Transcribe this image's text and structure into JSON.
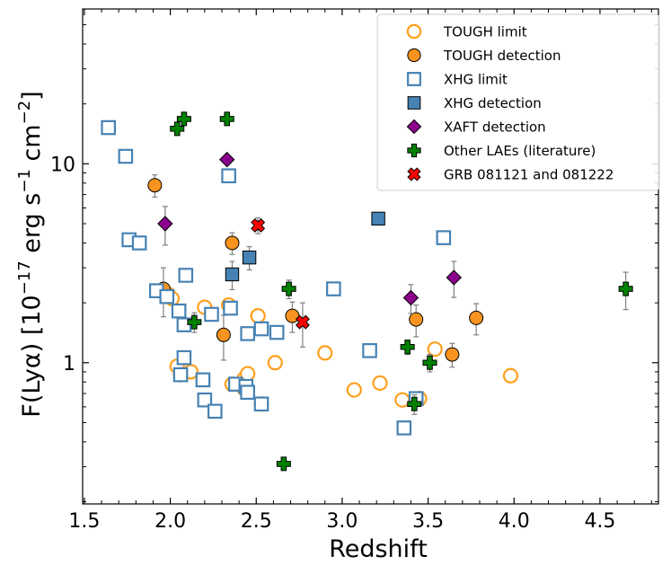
{
  "chart_data": {
    "type": "scatter",
    "title": "",
    "xlabel": "Redshift",
    "ylabel": "F(Lyα) [10",
    "ylabel_exp": "−17",
    "ylabel_unit1": " erg s",
    "ylabel_exp2": "−1",
    "ylabel_unit2": " cm",
    "ylabel_exp3": "−2",
    "ylabel_close": "]",
    "xlim": [
      1.49,
      4.84
    ],
    "ylim": [
      0.195,
      60
    ],
    "yscale": "log",
    "x_ticks": [
      1.5,
      2.0,
      2.5,
      3.0,
      3.5,
      4.0,
      4.5
    ],
    "x_tick_labels": [
      "1.5",
      "2.0",
      "2.5",
      "3.0",
      "3.5",
      "4.0",
      "4.5"
    ],
    "y_ticks": [
      1,
      10
    ],
    "y_tick_labels": [
      "1",
      "10"
    ],
    "legend_position": "top-right",
    "colors": {
      "orange": "#ff9f1c",
      "orange_fill": "#f7931e",
      "blue": "#4682b4",
      "purple": "#8b008b",
      "green": "#008000",
      "red": "#ff0000",
      "errorbar": "#808080"
    },
    "series": [
      {
        "name": "TOUGH limit",
        "marker": "circle-open",
        "points": [
          {
            "x": 1.99,
            "y": 2.2
          },
          {
            "x": 2.01,
            "y": 2.1
          },
          {
            "x": 2.04,
            "y": 0.96
          },
          {
            "x": 2.06,
            "y": 0.87
          },
          {
            "x": 2.12,
            "y": 0.9
          },
          {
            "x": 2.2,
            "y": 1.9
          },
          {
            "x": 2.34,
            "y": 1.95
          },
          {
            "x": 2.36,
            "y": 0.78
          },
          {
            "x": 2.43,
            "y": 0.83
          },
          {
            "x": 2.43,
            "y": 0.74
          },
          {
            "x": 2.45,
            "y": 0.88
          },
          {
            "x": 2.51,
            "y": 1.72
          },
          {
            "x": 2.53,
            "y": 0.62
          },
          {
            "x": 2.61,
            "y": 1.0
          },
          {
            "x": 2.9,
            "y": 1.12
          },
          {
            "x": 3.07,
            "y": 0.73
          },
          {
            "x": 3.22,
            "y": 0.79
          },
          {
            "x": 3.35,
            "y": 0.65
          },
          {
            "x": 3.45,
            "y": 0.66
          },
          {
            "x": 3.54,
            "y": 1.17
          },
          {
            "x": 3.98,
            "y": 0.86
          }
        ]
      },
      {
        "name": "TOUGH detection",
        "marker": "circle-filled",
        "points": [
          {
            "x": 1.91,
            "y": 7.8,
            "err": 1.0
          },
          {
            "x": 1.96,
            "y": 2.35,
            "err": 0.65
          },
          {
            "x": 2.31,
            "y": 1.38,
            "err": 0.35
          },
          {
            "x": 2.36,
            "y": 4.0,
            "err": 0.5
          },
          {
            "x": 2.71,
            "y": 1.72,
            "err": 0.3
          },
          {
            "x": 3.43,
            "y": 1.65,
            "err": 0.3
          },
          {
            "x": 3.64,
            "y": 1.1,
            "err": 0.15
          },
          {
            "x": 3.78,
            "y": 1.68,
            "err": 0.3
          }
        ]
      },
      {
        "name": "XHG limit",
        "marker": "square-open",
        "points": [
          {
            "x": 1.64,
            "y": 15.2
          },
          {
            "x": 1.74,
            "y": 10.9
          },
          {
            "x": 1.76,
            "y": 4.15
          },
          {
            "x": 1.82,
            "y": 4.0
          },
          {
            "x": 1.92,
            "y": 2.3
          },
          {
            "x": 1.98,
            "y": 2.15
          },
          {
            "x": 2.05,
            "y": 1.82
          },
          {
            "x": 2.06,
            "y": 0.87
          },
          {
            "x": 2.08,
            "y": 1.55
          },
          {
            "x": 2.08,
            "y": 1.06
          },
          {
            "x": 2.09,
            "y": 2.75
          },
          {
            "x": 2.19,
            "y": 0.82
          },
          {
            "x": 2.2,
            "y": 0.65
          },
          {
            "x": 2.24,
            "y": 1.75
          },
          {
            "x": 2.26,
            "y": 0.57
          },
          {
            "x": 2.34,
            "y": 8.7
          },
          {
            "x": 2.35,
            "y": 1.88
          },
          {
            "x": 2.38,
            "y": 0.78
          },
          {
            "x": 2.44,
            "y": 0.76
          },
          {
            "x": 2.45,
            "y": 0.71
          },
          {
            "x": 2.45,
            "y": 1.4
          },
          {
            "x": 2.53,
            "y": 1.48
          },
          {
            "x": 2.53,
            "y": 0.62
          },
          {
            "x": 2.62,
            "y": 1.42
          },
          {
            "x": 2.95,
            "y": 2.35
          },
          {
            "x": 3.16,
            "y": 1.15
          },
          {
            "x": 3.36,
            "y": 0.47
          },
          {
            "x": 3.43,
            "y": 0.66
          },
          {
            "x": 3.59,
            "y": 4.25
          }
        ]
      },
      {
        "name": "XHG detection",
        "marker": "square-filled",
        "points": [
          {
            "x": 2.36,
            "y": 2.78,
            "err": 0.45
          },
          {
            "x": 2.46,
            "y": 3.38,
            "err": 0.45
          },
          {
            "x": 3.21,
            "y": 5.3,
            "err": 0
          }
        ]
      },
      {
        "name": "XAFT detection",
        "marker": "diamond-filled",
        "points": [
          {
            "x": 1.97,
            "y": 5.0,
            "err": 1.1
          },
          {
            "x": 2.33,
            "y": 10.5,
            "err": 0
          },
          {
            "x": 3.4,
            "y": 2.12,
            "err": 0.35
          },
          {
            "x": 3.65,
            "y": 2.68,
            "err": 0.55
          }
        ]
      },
      {
        "name": "Other LAEs (literature)",
        "marker": "plus-filled",
        "points": [
          {
            "x": 2.04,
            "y": 15.0,
            "err": 0
          },
          {
            "x": 2.08,
            "y": 16.8,
            "err": 0
          },
          {
            "x": 2.14,
            "y": 1.6,
            "err": 0.18
          },
          {
            "x": 2.33,
            "y": 16.8,
            "err": 0
          },
          {
            "x": 2.66,
            "y": 0.31,
            "err": 0
          },
          {
            "x": 2.69,
            "y": 2.35,
            "err": 0.25
          },
          {
            "x": 3.38,
            "y": 1.2,
            "err": 0.1
          },
          {
            "x": 3.42,
            "y": 0.62,
            "err": 0.07
          },
          {
            "x": 3.51,
            "y": 1.0,
            "err": 0.1
          },
          {
            "x": 4.65,
            "y": 2.35,
            "err": 0.5
          }
        ]
      },
      {
        "name": "GRB 081121 and 081222",
        "marker": "x-filled",
        "points": [
          {
            "x": 2.51,
            "y": 4.9,
            "err": 0.45
          },
          {
            "x": 2.77,
            "y": 1.6,
            "err": 0.4
          }
        ]
      }
    ]
  }
}
